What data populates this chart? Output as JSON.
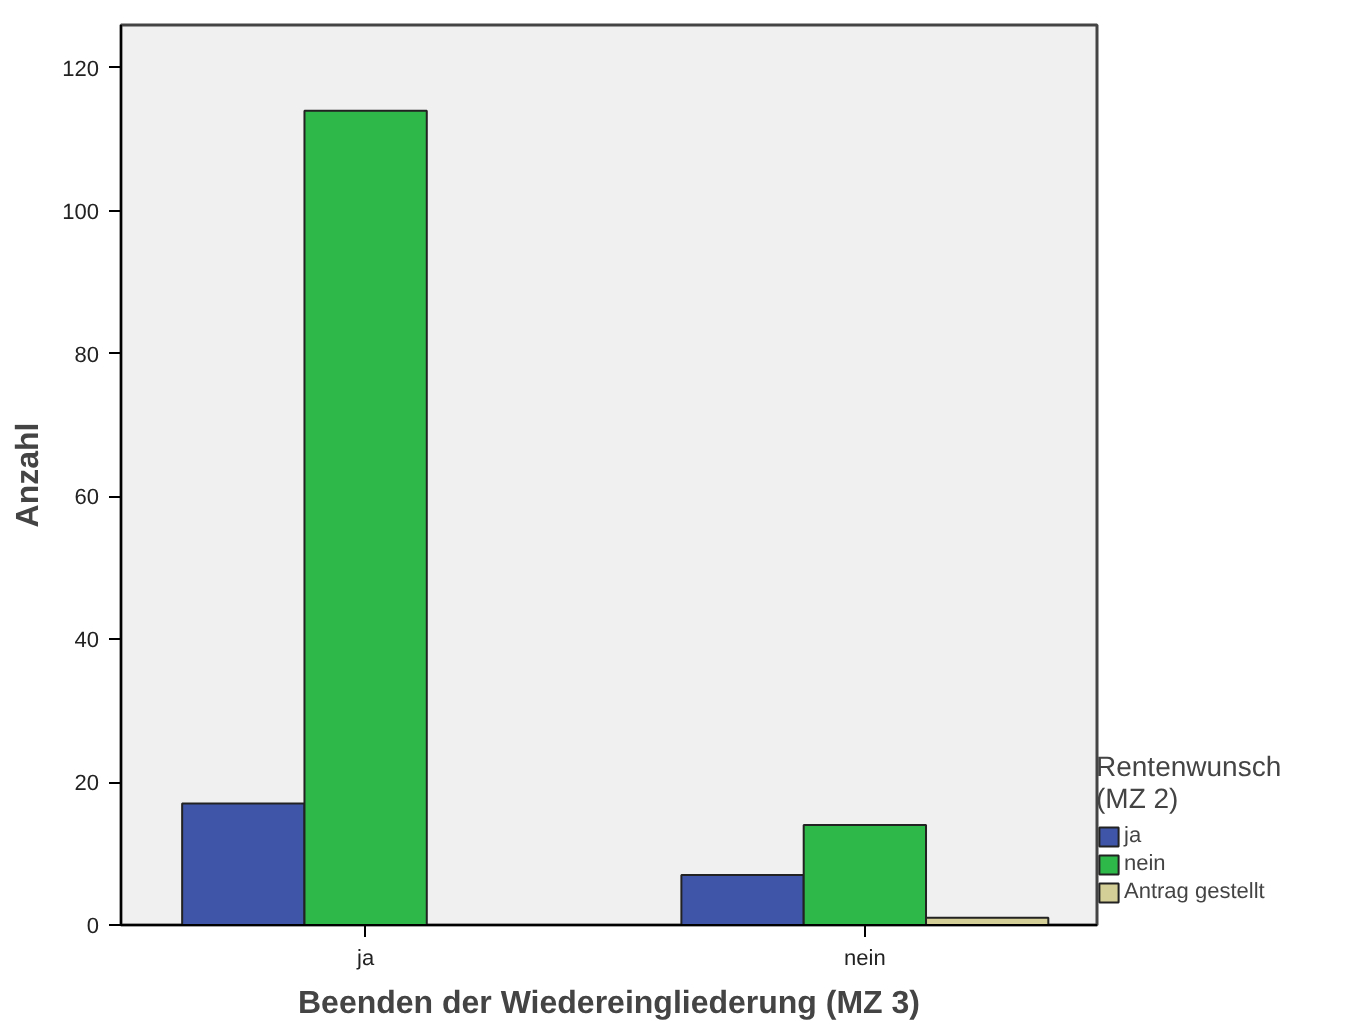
{
  "chart_data": {
    "type": "bar",
    "xlabel": "Beenden der Wiedereingliederung (MZ 3)",
    "ylabel": "Anzahl",
    "legend_title": "Rentenwunsch (MZ 2)",
    "categories": [
      "ja",
      "nein"
    ],
    "series": [
      {
        "name": "ja",
        "color": "#3f56a8",
        "values": [
          17,
          7
        ]
      },
      {
        "name": "nein",
        "color": "#2fb84a",
        "values": [
          114,
          14
        ]
      },
      {
        "name": "Antrag gestellt",
        "color": "#d4cf96",
        "values": [
          null,
          1
        ]
      }
    ],
    "ylim": [
      0,
      126
    ],
    "yticks": [
      0,
      20,
      40,
      60,
      80,
      100,
      120
    ],
    "grid": false,
    "legend": "right"
  }
}
